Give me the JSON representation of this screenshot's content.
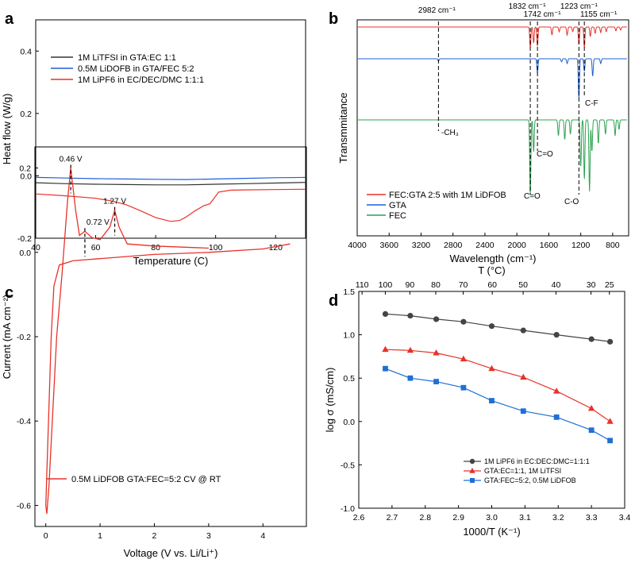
{
  "chart_data": [
    {
      "panel": "a",
      "type": "line",
      "xlabel": "Temperature (C)",
      "ylabel": "Heat flow (W/g)",
      "xlim": [
        40,
        130
      ],
      "ylim": [
        -0.2,
        0.5
      ],
      "xticks": [
        40,
        60,
        80,
        100,
        120
      ],
      "yticks": [
        -0.2,
        0.0,
        0.2,
        0.4
      ],
      "legend_position": "upper-left",
      "series": [
        {
          "name": "1M LiTFSI in GTA:EC 1:1",
          "color": "#333333",
          "x": [
            40,
            50,
            60,
            70,
            80,
            90,
            100,
            110,
            120,
            130
          ],
          "y": [
            -0.022,
            -0.025,
            -0.027,
            -0.028,
            -0.029,
            -0.029,
            -0.027,
            -0.025,
            -0.023,
            -0.021
          ]
        },
        {
          "name": "0.5M LiDOFB in GTA/FEC 5:2",
          "color": "#1f5fd6",
          "x": [
            40,
            50,
            60,
            70,
            80,
            90,
            100,
            110,
            120,
            130
          ],
          "y": [
            -0.005,
            -0.007,
            -0.009,
            -0.01,
            -0.011,
            -0.012,
            -0.01,
            -0.008,
            -0.006,
            -0.005
          ]
        },
        {
          "name": "1M LiPF6 in EC/DEC/DMC 1:1:1",
          "color": "#e8322a",
          "x": [
            40,
            50,
            60,
            65,
            70,
            75,
            80,
            85,
            88,
            90,
            93,
            96,
            98,
            99,
            101,
            105,
            110,
            120,
            130
          ],
          "y": [
            -0.058,
            -0.064,
            -0.072,
            -0.08,
            -0.092,
            -0.112,
            -0.134,
            -0.146,
            -0.143,
            -0.133,
            -0.113,
            -0.096,
            -0.09,
            -0.078,
            -0.052,
            -0.046,
            -0.045,
            -0.044,
            -0.043
          ]
        }
      ]
    },
    {
      "panel": "b",
      "type": "line",
      "xlabel": "Wavelength (cm⁻¹)",
      "ylabel": "Transmmitance",
      "xlim": [
        4000,
        600
      ],
      "xticks": [
        4000,
        3600,
        3200,
        2800,
        2400,
        2000,
        1600,
        1200,
        800
      ],
      "legend_position": "lower-left",
      "series": [
        {
          "name": "FEC:GTA 2:5 with 1M LiDFOB",
          "color": "#e8322a"
        },
        {
          "name": "GTA",
          "color": "#1f5fd6"
        },
        {
          "name": "FEC",
          "color": "#2ca24f"
        }
      ],
      "peak_labels": [
        "2982 cm⁻¹",
        "1832 cm⁻¹",
        "1742 cm⁻¹",
        "1223 cm⁻¹",
        "1155 cm⁻¹"
      ],
      "peak_positions": [
        2982,
        1832,
        1742,
        1223,
        1155
      ],
      "group_labels": [
        "-CH₃",
        "C=O",
        "C=O",
        "C-O",
        "C-F"
      ]
    },
    {
      "panel": "c",
      "type": "line",
      "xlabel": "Voltage (V vs. Li/Li⁺)",
      "ylabel": "Current (mA cm⁻²)",
      "xlim": [
        -0.2,
        4.8
      ],
      "ylim": [
        -0.65,
        0.25
      ],
      "xticks": [
        0,
        1,
        2,
        3,
        4
      ],
      "yticks": [
        -0.6,
        -0.4,
        -0.2,
        0.0,
        0.2
      ],
      "legend_position": "bottom",
      "series": [
        {
          "name": "0.5M LiDFOB GTA:FEC=5:2 CV @ RT",
          "color": "#e8322a"
        }
      ],
      "annotations": [
        {
          "text": "0.46 V",
          "x": 0.46,
          "y": 0.2
        },
        {
          "text": "0.72 V",
          "x": 0.72,
          "y": 0.05
        },
        {
          "text": "1.27 V",
          "x": 1.27,
          "y": 0.1
        }
      ]
    },
    {
      "panel": "d",
      "type": "line",
      "xlabel": "1000/T (K⁻¹)",
      "ylabel": "log σ (mS/cm)",
      "x2label": "T (°C)",
      "xlim": [
        2.6,
        3.4
      ],
      "ylim": [
        -1.0,
        1.5
      ],
      "xticks": [
        2.6,
        2.7,
        2.8,
        2.9,
        3.0,
        3.1,
        3.2,
        3.3,
        3.4
      ],
      "yticks": [
        -1.0,
        -0.5,
        0.0,
        0.5,
        1.0,
        1.5
      ],
      "top_ticks": [
        110,
        100,
        90,
        80,
        70,
        60,
        50,
        40,
        30,
        25
      ],
      "legend_position": "lower-right",
      "x": [
        2.68,
        2.755,
        2.833,
        2.915,
        3.0,
        3.095,
        3.195,
        3.3,
        3.356
      ],
      "series": [
        {
          "name": "1M LiPF6 in EC:DEC:DMC=1:1:1",
          "color": "#444444",
          "marker": "circle",
          "values": [
            1.24,
            1.22,
            1.18,
            1.15,
            1.1,
            1.05,
            1.0,
            0.95,
            0.92
          ]
        },
        {
          "name": "GTA:EC=1:1, 1M LiTFSI",
          "color": "#e8322a",
          "marker": "triangle",
          "values": [
            0.83,
            0.82,
            0.79,
            0.72,
            0.61,
            0.51,
            0.35,
            0.15,
            0.0
          ]
        },
        {
          "name": "GTA:FEC=5:2, 0.5M LiDFOB",
          "color": "#1f6fd6",
          "marker": "square",
          "values": [
            0.61,
            0.5,
            0.46,
            0.39,
            0.24,
            0.12,
            0.05,
            -0.1,
            -0.22
          ]
        }
      ]
    }
  ],
  "panel_letters": [
    "a",
    "b",
    "c",
    "d"
  ]
}
